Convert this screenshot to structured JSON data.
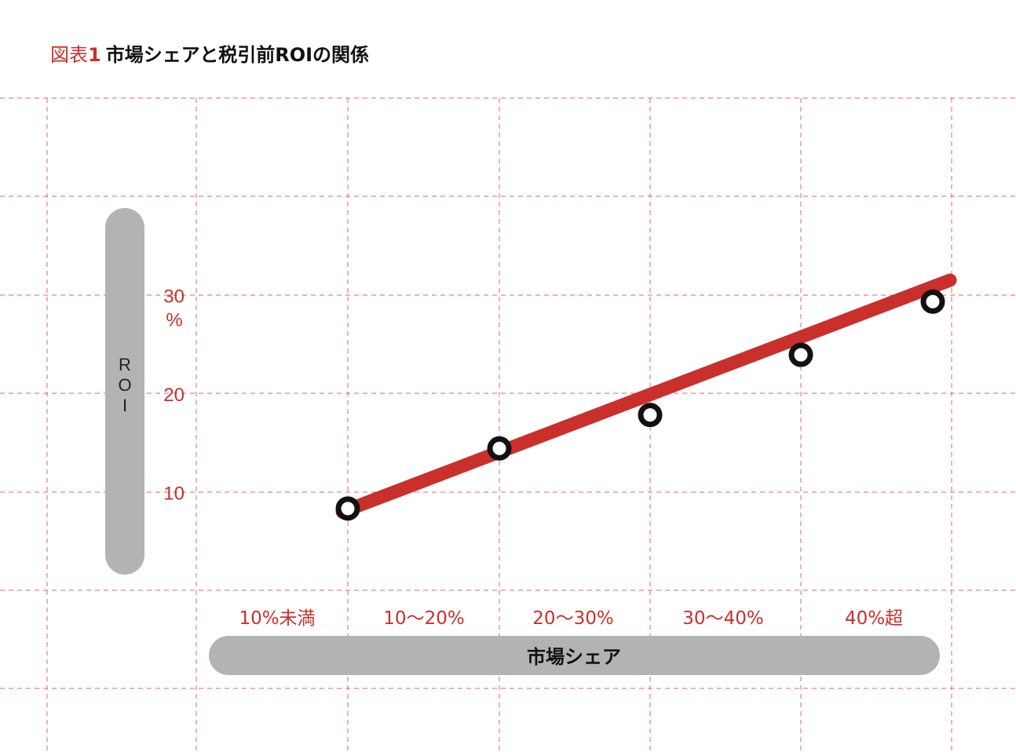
{
  "title": {
    "label": "図表",
    "number": "1",
    "text": "市場シェアと税引前ROIの関係"
  },
  "colors": {
    "accent": "#c9302c",
    "grid": "#e06666",
    "pill": "#b1b4b3",
    "marker": "#111111"
  },
  "chart_data": {
    "type": "line",
    "title": "市場シェアと税引前ROIの関係",
    "xlabel": "市場シェア",
    "ylabel": "ROI",
    "y_unit": "%",
    "categories": [
      "10%未満",
      "10〜20%",
      "20〜30%",
      "30〜40%",
      "40%超"
    ],
    "series": [
      {
        "values": [
          8.3,
          14.4,
          17.8,
          23.9,
          29.3
        ],
        "style": "open-circle markers"
      }
    ],
    "trendline": {
      "start": 9.0,
      "end": 31.0,
      "style": "thick red line"
    },
    "yticks": [
      10,
      20,
      30
    ],
    "ylim": [
      0,
      50
    ],
    "grid": true
  }
}
